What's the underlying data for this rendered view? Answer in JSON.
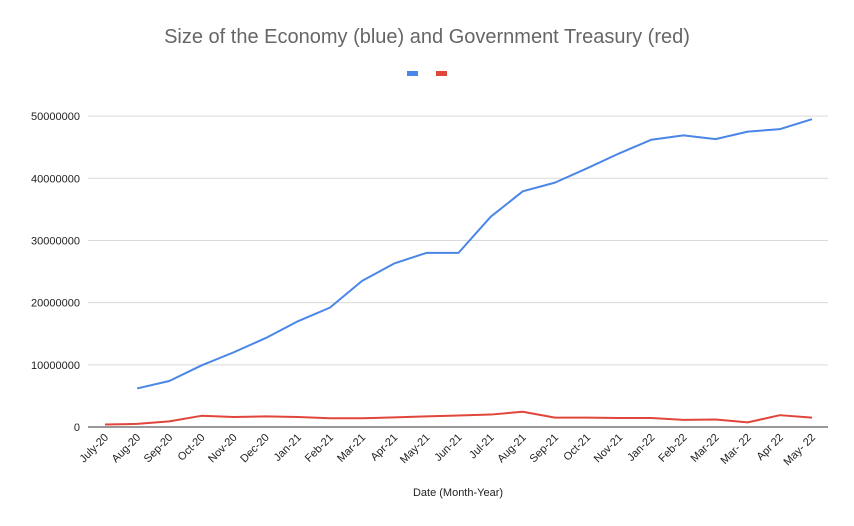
{
  "chart_data": {
    "type": "line",
    "title": "Size of the Economy (blue) and Government Treasury (red)",
    "xlabel": "Date (Month-Year)",
    "ylabel": "",
    "ylim": [
      0,
      55000000
    ],
    "yticks": [
      "0",
      "10000000",
      "20000000",
      "30000000",
      "40000000",
      "50000000"
    ],
    "ytick_values": [
      0,
      10000000,
      20000000,
      30000000,
      40000000,
      50000000
    ],
    "grid": true,
    "legend": "top-center",
    "categories": [
      "July-20",
      "Aug-20",
      "Sep-20",
      "Oct-20",
      "Nov-20",
      "Dec-20",
      "Jan-21",
      "Feb-21",
      "Mar-21",
      "Apr-21",
      "May-21",
      "Jun-21",
      "Jul-21",
      "Aug-21",
      "Sep-21",
      "Oct-21",
      "Nov-21",
      "Jan-22",
      "Feb-22",
      "Mar-22",
      "Mar- 22",
      "Apr 22",
      "May- 22"
    ],
    "series": [
      {
        "color": "#4a86e8",
        "values": [
          null,
          6200000,
          7400000,
          9900000,
          12000000,
          14300000,
          17000000,
          19200000,
          23500000,
          26300000,
          28000000,
          28000000,
          33800000,
          37900000,
          39300000,
          41600000,
          44000000,
          46200000,
          46900000,
          46300000,
          47500000,
          47900000,
          49500000
        ]
      },
      {
        "color": "#e0463a",
        "values": [
          400000,
          500000,
          900000,
          1800000,
          1600000,
          1700000,
          1600000,
          1400000,
          1400000,
          1550000,
          1700000,
          1850000,
          2000000,
          2450000,
          1500000,
          1500000,
          1450000,
          1450000,
          1150000,
          1200000,
          750000,
          1900000,
          1500000
        ]
      }
    ]
  }
}
